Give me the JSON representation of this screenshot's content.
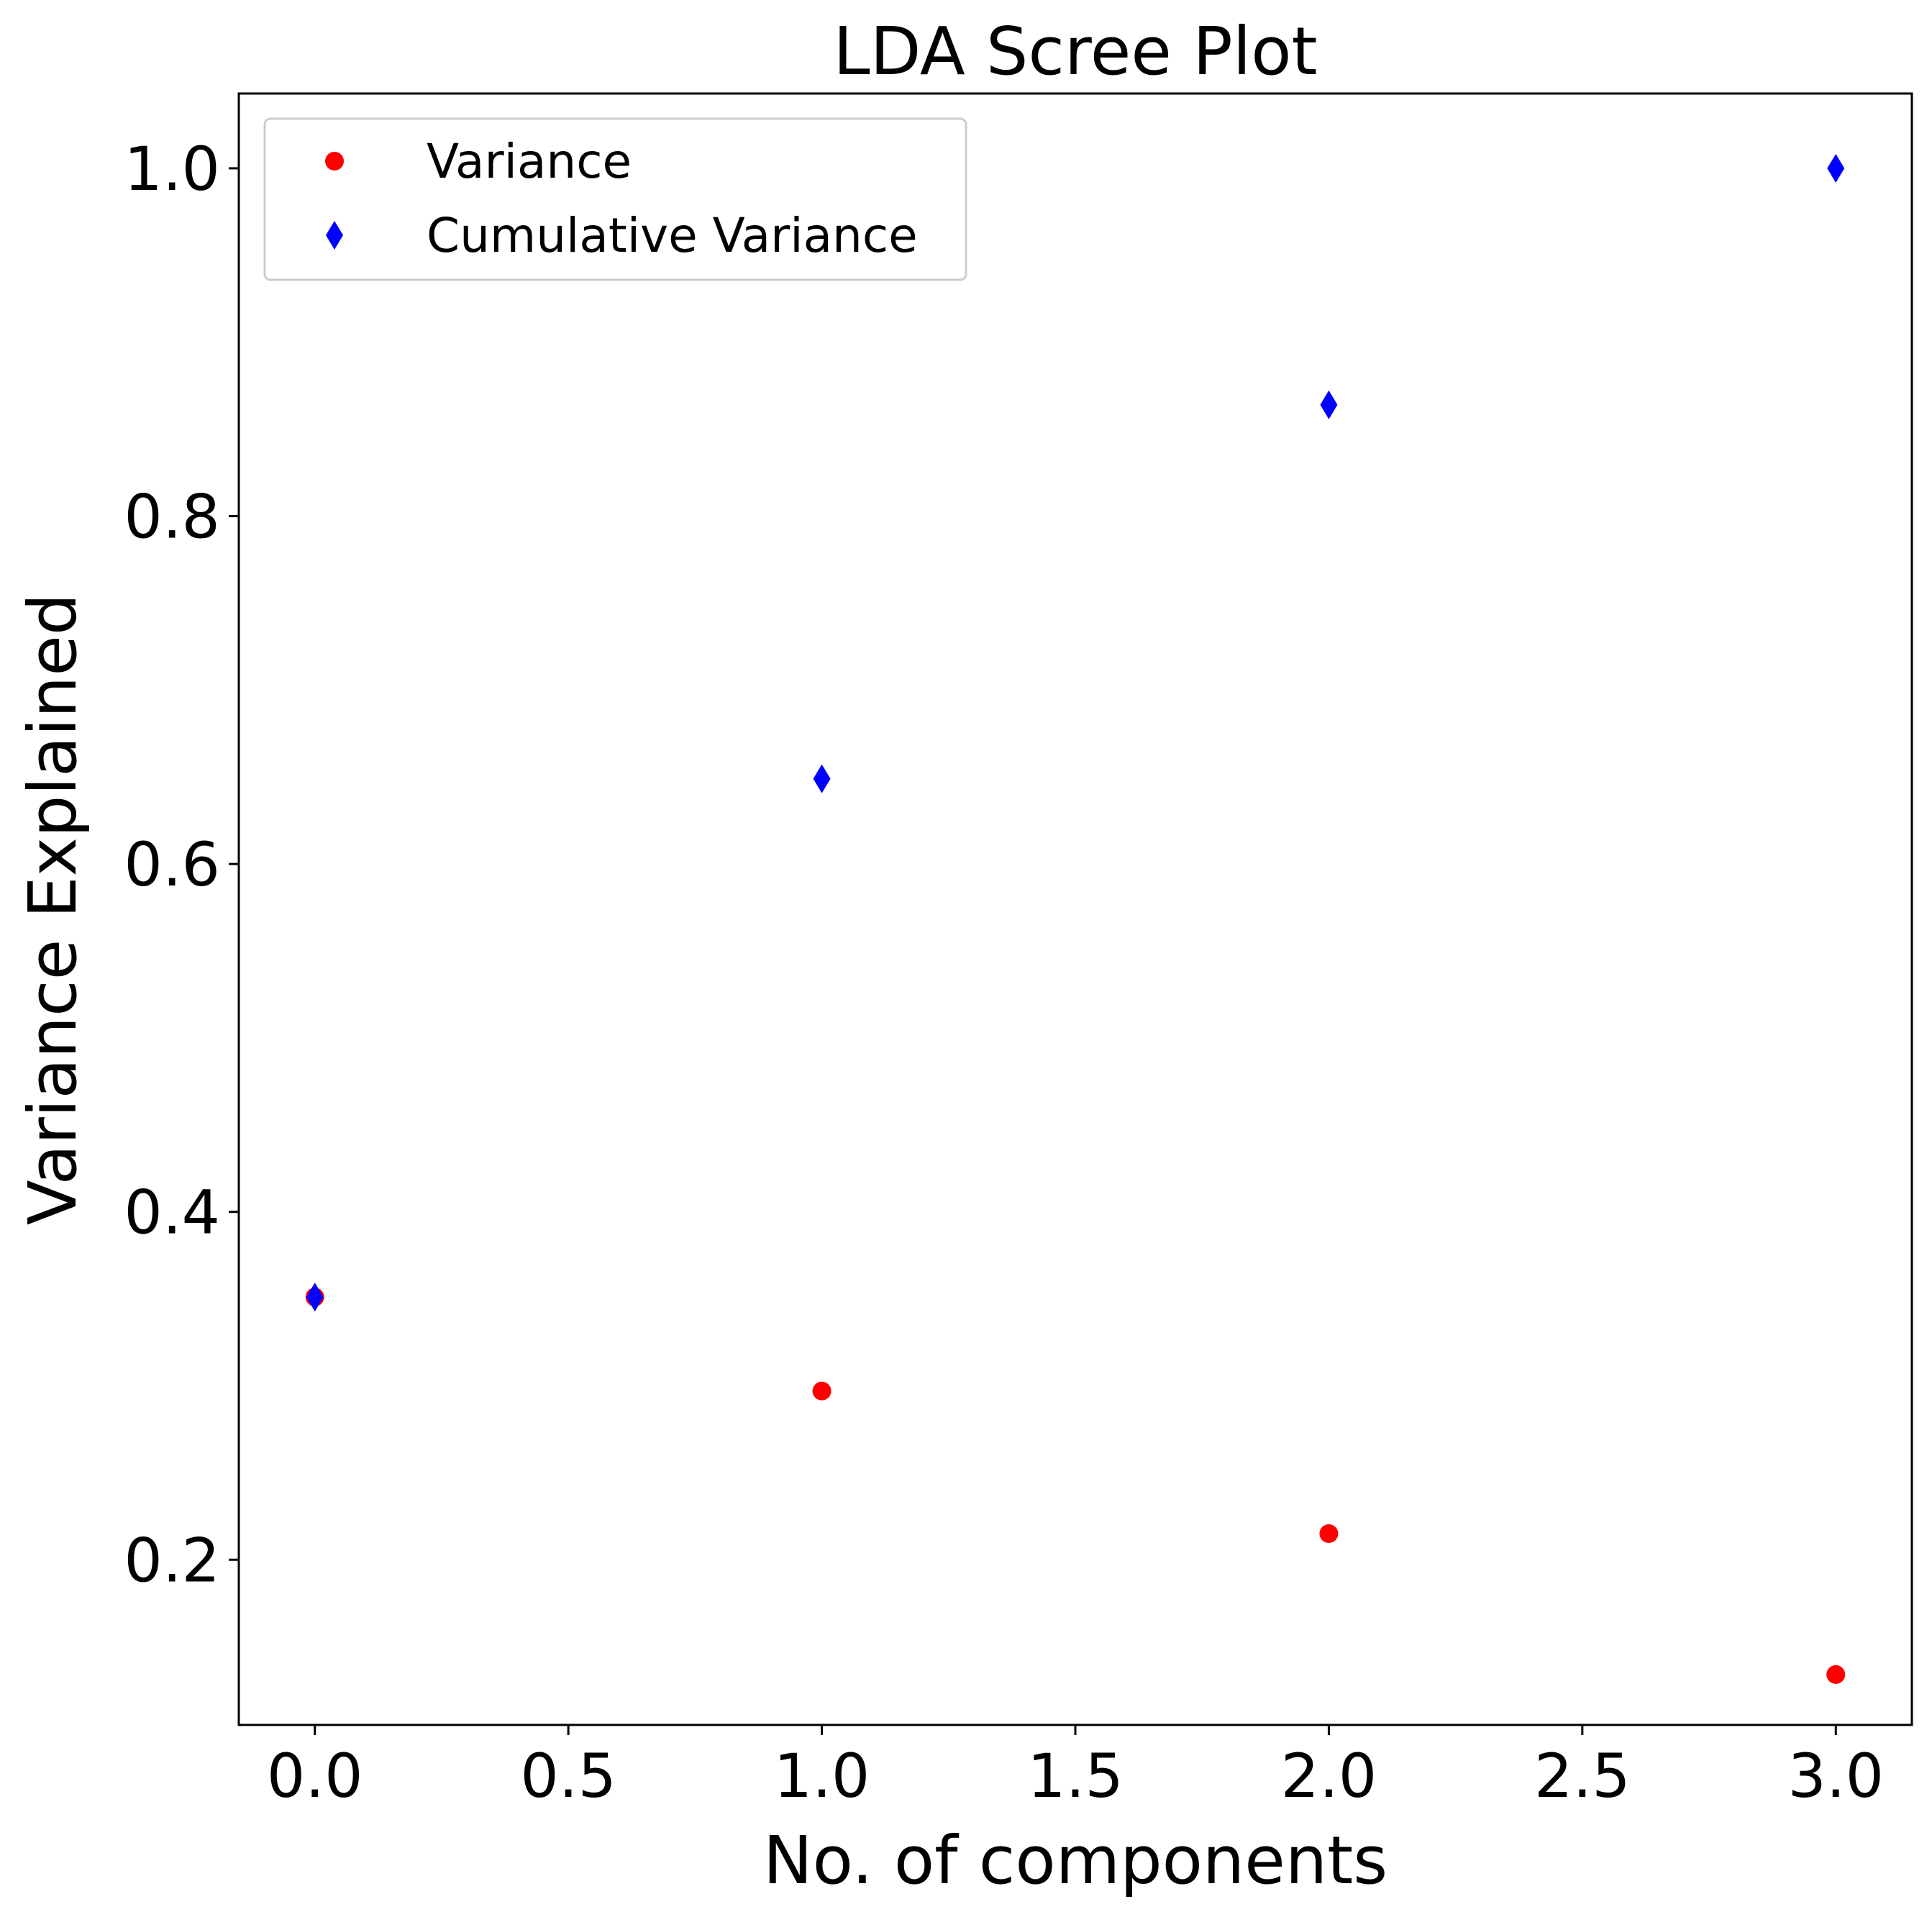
{
  "chart_data": {
    "type": "scatter",
    "title": "LDA Scree Plot",
    "xlabel": "No. of components",
    "ylabel": "Variance Explained",
    "xlim": [
      -0.15,
      3.15
    ],
    "ylim": [
      0.105,
      1.043
    ],
    "xticks": [
      0.0,
      0.5,
      1.0,
      1.5,
      2.0,
      2.5,
      3.0
    ],
    "xtick_labels": [
      "0.0",
      "0.5",
      "1.0",
      "1.5",
      "2.0",
      "2.5",
      "3.0"
    ],
    "yticks": [
      0.2,
      0.4,
      0.6,
      0.8,
      1.0
    ],
    "ytick_labels": [
      "0.2",
      "0.4",
      "0.6",
      "0.8",
      "1.0"
    ],
    "grid": false,
    "legend_position": "upper-left",
    "series": [
      {
        "name": "Variance",
        "marker": "circle",
        "color": "#ff0000",
        "x": [
          0,
          1,
          2,
          3
        ],
        "y": [
          0.351,
          0.297,
          0.215,
          0.134
        ]
      },
      {
        "name": "Cumulative Variance",
        "marker": "diamond",
        "color": "#0000ff",
        "x": [
          0,
          1,
          2,
          3
        ],
        "y": [
          0.351,
          0.649,
          0.864,
          1.0
        ]
      }
    ]
  }
}
